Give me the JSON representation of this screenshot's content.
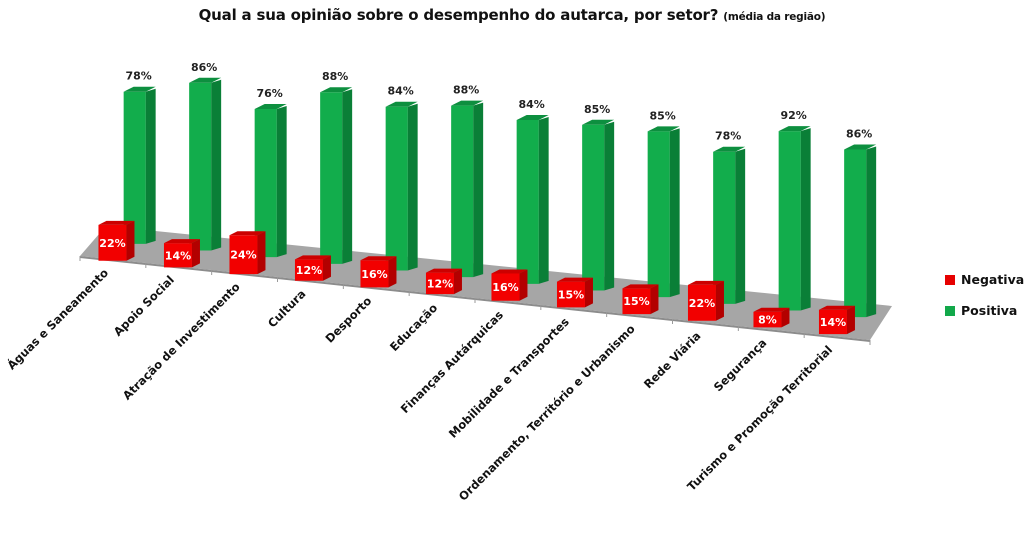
{
  "chart_data": {
    "type": "bar",
    "subtype": "3d-clustered-column",
    "title": "Qual a sua opinião sobre o desempenho do autarca, por setor?",
    "subtitle": "(média da região)",
    "xlabel": "",
    "ylabel": "",
    "categories": [
      "Águas e Saneamento",
      "Apoio Social",
      "Atração de Investimento",
      "Cultura",
      "Desporto",
      "Educação",
      "Finanças Autárquicas",
      "Mobilidade e Transportes",
      "Ordenamento, Território e Urbanismo",
      "Rede Viária",
      "Segurança",
      "Turismo e Promoção Territorial"
    ],
    "series": [
      {
        "name": "Negativa",
        "color": "#e60000",
        "values": [
          22,
          14,
          24,
          12,
          16,
          12,
          16,
          15,
          15,
          22,
          8,
          14
        ],
        "labels": [
          "22%",
          "14%",
          "24%",
          "12%",
          "16%",
          "12%",
          "16%",
          "15%",
          "15%",
          "22%",
          "8%",
          "14%"
        ]
      },
      {
        "name": "Positiva",
        "color": "#12a84a",
        "values": [
          78,
          86,
          76,
          88,
          84,
          88,
          84,
          85,
          85,
          78,
          92,
          86
        ],
        "labels": [
          "78%",
          "86%",
          "76%",
          "88%",
          "84%",
          "88%",
          "84%",
          "85%",
          "85%",
          "78%",
          "92%",
          "86%"
        ]
      }
    ],
    "unit": "%",
    "ylim": [
      0,
      100
    ],
    "grid": false,
    "legend_position": "right"
  },
  "legend": {
    "items": [
      {
        "label": "Negativa",
        "color": "#e60000"
      },
      {
        "label": "Positiva",
        "color": "#12a84a"
      }
    ]
  }
}
